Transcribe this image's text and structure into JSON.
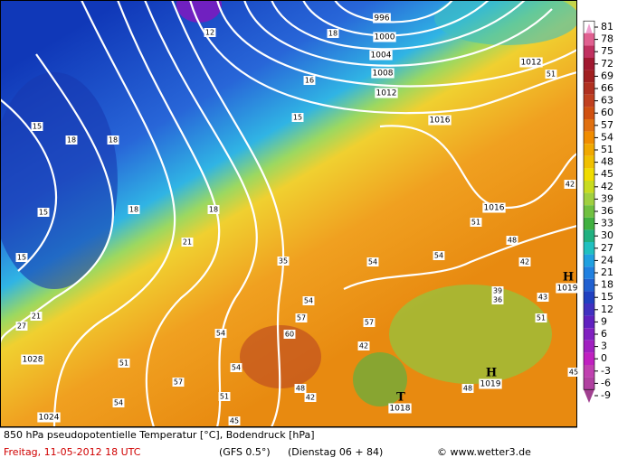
{
  "map": {
    "footer": {
      "product": "850 hPa pseudopotentielle Temperatur [°C], Bodendruck [hPa]",
      "run": "Freitag, 11-05-2012   18 UTC",
      "model": "(GFS 0.5°)",
      "forecast": "(Dienstag 06 + 84)",
      "source": "© www.wetter3.de"
    },
    "legend": {
      "ticks": [
        81,
        78,
        75,
        72,
        69,
        66,
        63,
        60,
        57,
        54,
        51,
        48,
        45,
        42,
        39,
        36,
        33,
        30,
        27,
        24,
        21,
        18,
        15,
        12,
        9,
        6,
        3,
        0,
        -3,
        -6,
        -9
      ],
      "colors": [
        "#f0a0d0",
        "#e06090",
        "#c03060",
        "#a01830",
        "#a02020",
        "#b03020",
        "#c04020",
        "#d05010",
        "#e07010",
        "#f08c00",
        "#f0a800",
        "#f0c000",
        "#f0dc00",
        "#c8dc20",
        "#a0d040",
        "#70c040",
        "#40b040",
        "#20b080",
        "#20c0c0",
        "#20a0e0",
        "#2080e0",
        "#2060d0",
        "#2040c0",
        "#4030c0",
        "#6020c0",
        "#8020c0",
        "#a020c0",
        "#c020c0",
        "#c040b0",
        "#b040a0",
        "#a04090"
      ]
    },
    "isobar_labels": [
      996,
      1000,
      1004,
      1008,
      1012,
      1012,
      1016,
      1016,
      1028,
      1024
    ],
    "pressure_centers": [
      {
        "symbol": "H",
        "value": 1019
      },
      {
        "symbol": "H",
        "value": 1019
      },
      {
        "symbol": "T",
        "value": 1018
      }
    ],
    "temperature_labels": [
      15,
      18,
      18,
      15,
      18,
      18,
      21,
      15,
      21,
      27,
      35,
      54,
      54,
      51,
      48,
      42,
      39,
      36,
      43,
      51,
      54,
      57,
      60,
      54,
      57,
      42,
      51,
      54,
      57,
      54,
      48,
      42,
      51,
      45,
      48,
      45,
      51,
      42,
      12,
      16,
      15,
      18
    ]
  }
}
